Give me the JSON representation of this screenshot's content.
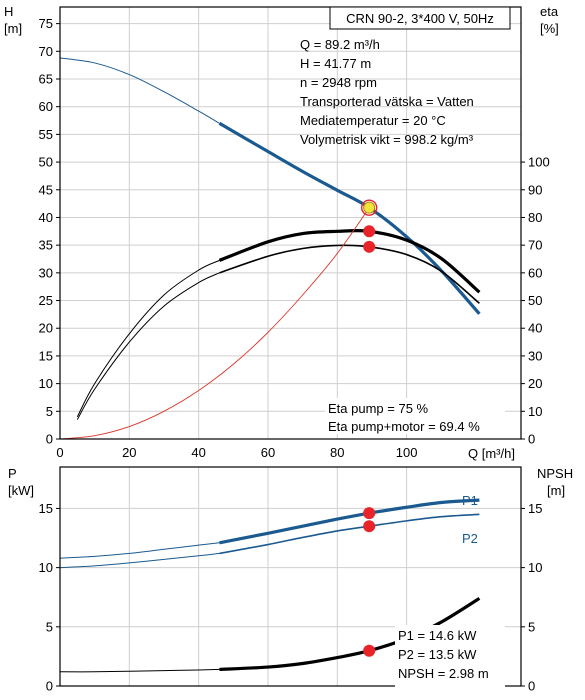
{
  "title_box": "CRN 90-2, 3*400 V, 50Hz",
  "colors": {
    "head": "#1a5a90",
    "power": "#1a5a90",
    "npsh": "#000000",
    "eta": "#000000",
    "eta_qh": "#d9362b",
    "point": "#e8232a",
    "duty": "#f2e43a"
  },
  "upper": {
    "y_label_left": [
      "H",
      "[m]"
    ],
    "y_label_right": [
      "eta",
      "[%]"
    ],
    "x_label": "Q [m³/h]",
    "xlim": [
      0,
      133
    ],
    "ylim_left": [
      0,
      78
    ],
    "ylim_right": [
      0,
      156
    ],
    "x_ticks": [
      0,
      20,
      40,
      60,
      80,
      100
    ],
    "y_ticks_left": [
      0,
      5,
      10,
      15,
      20,
      25,
      30,
      35,
      40,
      45,
      50,
      55,
      60,
      65,
      70,
      75
    ],
    "y_ticks_right": [
      0,
      10,
      20,
      30,
      40,
      50,
      60,
      70,
      80,
      90,
      100
    ],
    "info_lines": [
      "Q = 89.2 m³/h",
      "H = 41.77 m",
      "n = 2948 rpm",
      "Transporterad vätska = Vatten",
      "Mediatemperatur = 20 °C",
      "Volymetrisk vikt = 998.2 kg/m³"
    ],
    "eta_lines": [
      "Eta pump = 75 %",
      "Eta pump+motor = 69.4 %"
    ]
  },
  "lower": {
    "y_label_left": [
      "P",
      "[kW]"
    ],
    "y_label_right": [
      "NPSH",
      "[m]"
    ],
    "xlim": [
      0,
      133
    ],
    "ylim_left": [
      0,
      18.5
    ],
    "ylim_right": [
      0,
      18.5
    ],
    "y_ticks_left": [
      0,
      5,
      10,
      15
    ],
    "y_ticks_right": [
      0,
      5,
      10,
      15
    ],
    "series_labels": {
      "p1": "P1",
      "p2": "P2"
    },
    "info_lines": [
      "P1 = 14.6 kW",
      "P2 = 13.5 kW",
      "NPSH = 2.98 m"
    ]
  },
  "chart_data": [
    {
      "type": "line",
      "title": "CRN 90-2, 3*400 V, 50Hz",
      "xlabel": "Q [m³/h]",
      "ylabel": "H [m]",
      "y2label": "eta [%]",
      "xlim": [
        0,
        133
      ],
      "ylim": [
        0,
        78
      ],
      "y2lim": [
        0,
        156
      ],
      "series": [
        {
          "name": "H",
          "axis": "left",
          "x": [
            0,
            10,
            20,
            30,
            40,
            46,
            60,
            70,
            80,
            89.2,
            100,
            110,
            121
          ],
          "y": [
            68.8,
            67.9,
            65.8,
            62.7,
            59.2,
            57.0,
            51.9,
            48.3,
            44.9,
            41.77,
            36.5,
            30.4,
            22.6
          ]
        },
        {
          "name": "Eta pump",
          "axis": "right",
          "x": [
            5,
            10,
            20,
            30,
            40,
            46,
            60,
            70,
            80,
            89.2,
            100,
            110,
            121
          ],
          "y": [
            8,
            20,
            38,
            52,
            61,
            64.5,
            71.2,
            74.2,
            75.0,
            75.0,
            71.8,
            65.2,
            53
          ]
        },
        {
          "name": "Eta pump+motor",
          "axis": "right",
          "x": [
            5,
            10,
            20,
            30,
            40,
            46,
            60,
            70,
            80,
            89.2,
            100,
            110,
            121
          ],
          "y": [
            7,
            18,
            35,
            48,
            56.5,
            60,
            66,
            68.8,
            69.9,
            69.4,
            66.6,
            60.6,
            49
          ]
        },
        {
          "name": "Eta Q·H",
          "axis": "right",
          "x": [
            0,
            10,
            20,
            30,
            40,
            50,
            60,
            70,
            80,
            89.2
          ],
          "y": [
            0,
            1.2,
            4.5,
            10,
            17.5,
            27,
            38.5,
            52,
            67,
            83.5
          ]
        }
      ],
      "points": [
        {
          "name": "duty point",
          "x": 89.2,
          "y": 41.77,
          "axis": "left"
        },
        {
          "name": "Eta pump",
          "x": 89.2,
          "y": 75.0,
          "axis": "right"
        },
        {
          "name": "Eta pump+motor",
          "x": 89.2,
          "y": 69.4,
          "axis": "right"
        }
      ]
    },
    {
      "type": "line",
      "ylabel": "P [kW]",
      "y2label": "NPSH [m]",
      "xlim": [
        0,
        133
      ],
      "ylim": [
        0,
        18.5
      ],
      "y2lim": [
        0,
        18.5
      ],
      "series": [
        {
          "name": "P1",
          "axis": "left",
          "x": [
            0,
            10,
            20,
            30,
            40,
            46,
            60,
            70,
            80,
            89.2,
            100,
            110,
            121
          ],
          "y": [
            10.8,
            10.95,
            11.2,
            11.55,
            11.9,
            12.1,
            12.9,
            13.5,
            14.1,
            14.6,
            15.1,
            15.5,
            15.7
          ]
        },
        {
          "name": "P2",
          "axis": "left",
          "x": [
            0,
            10,
            20,
            30,
            40,
            46,
            60,
            70,
            80,
            89.2,
            100,
            110,
            121
          ],
          "y": [
            10.0,
            10.15,
            10.4,
            10.7,
            11.0,
            11.2,
            11.95,
            12.55,
            13.1,
            13.5,
            13.95,
            14.3,
            14.5
          ]
        },
        {
          "name": "NPSH",
          "axis": "right",
          "x": [
            0,
            10,
            20,
            30,
            40,
            46,
            60,
            70,
            80,
            89.2,
            100,
            110,
            121
          ],
          "y": [
            1.2,
            1.2,
            1.25,
            1.3,
            1.35,
            1.4,
            1.6,
            1.9,
            2.4,
            2.98,
            4.0,
            5.4,
            7.4
          ]
        }
      ],
      "points": [
        {
          "name": "P1",
          "x": 89.2,
          "y": 14.6,
          "axis": "left"
        },
        {
          "name": "P2",
          "x": 89.2,
          "y": 13.5,
          "axis": "left"
        },
        {
          "name": "NPSH",
          "x": 89.2,
          "y": 2.98,
          "axis": "right"
        }
      ]
    }
  ]
}
